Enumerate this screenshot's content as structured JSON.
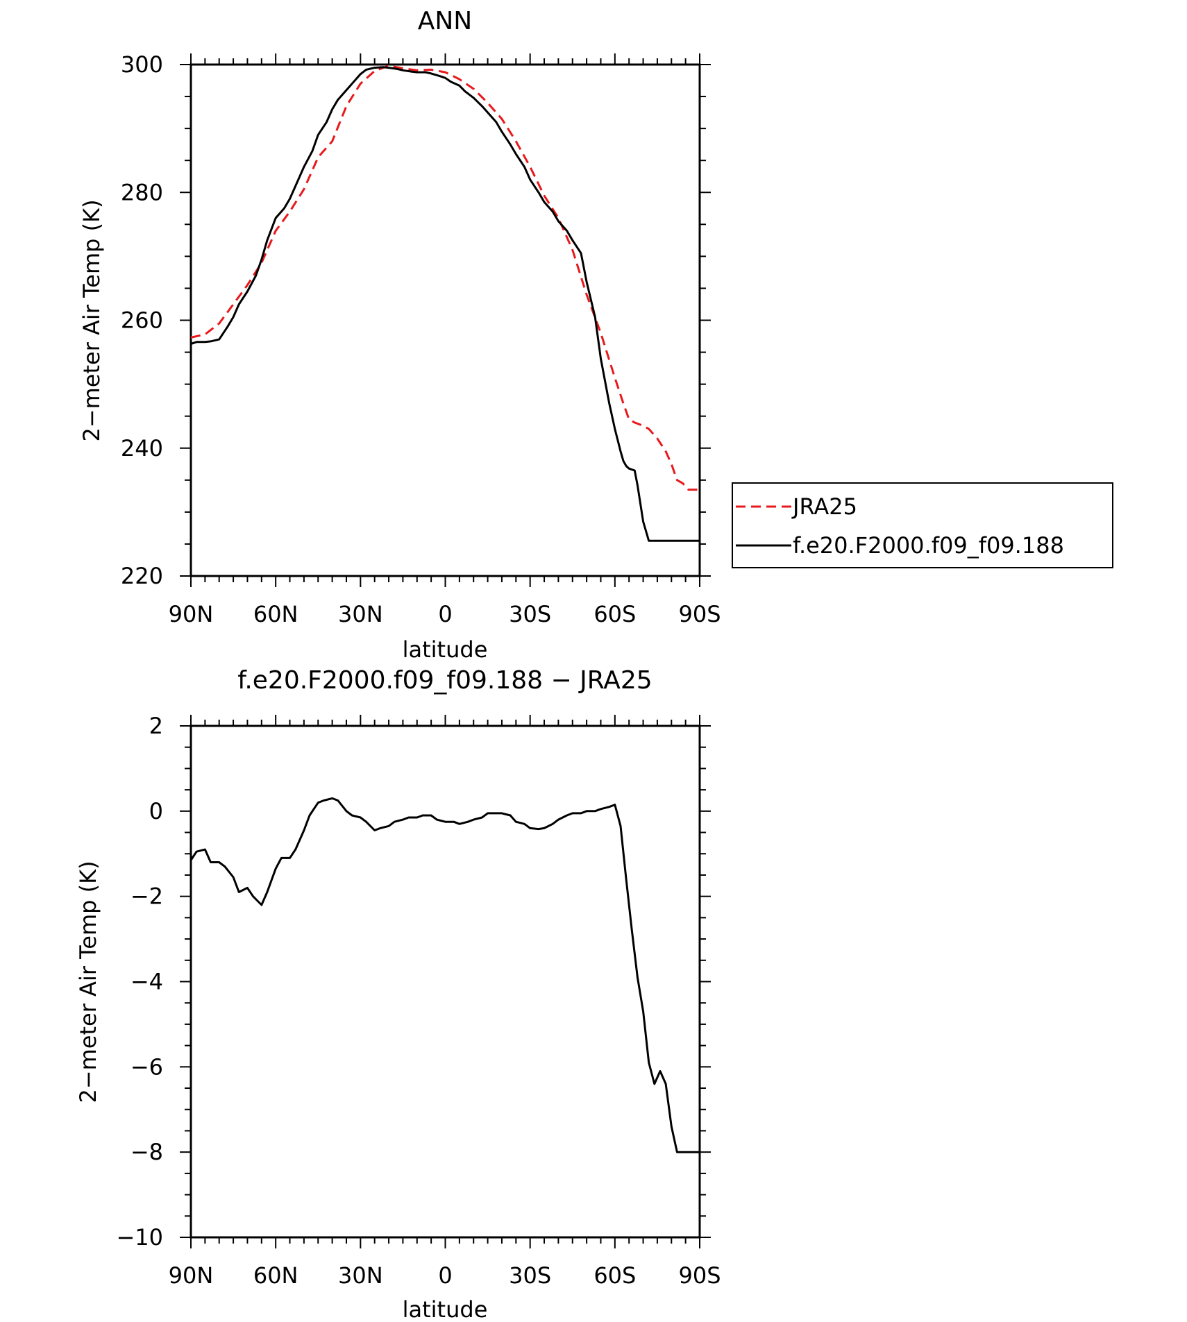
{
  "chart_data": [
    {
      "type": "line",
      "title": "ANN",
      "xlabel": "latitude",
      "ylabel": "2−meter Air Temp (K)",
      "xlim": [
        90,
        -90
      ],
      "ylim": [
        220,
        300
      ],
      "xticks": [
        90,
        60,
        30,
        0,
        -30,
        -60,
        -90
      ],
      "xticklabels": [
        "90N",
        "60N",
        "30N",
        "0",
        "30S",
        "60S",
        "90S"
      ],
      "yticks": [
        220,
        240,
        260,
        280,
        300
      ],
      "yticklabels": [
        "220",
        "240",
        "260",
        "280",
        "300"
      ],
      "grid": false,
      "legend": "right",
      "series": [
        {
          "name": "JRA25",
          "color": "#e8191c",
          "dash": "dashed",
          "x": [
            90,
            85,
            80,
            75,
            70,
            65,
            60,
            55,
            50,
            45,
            40,
            35,
            30,
            25,
            20,
            15,
            10,
            5,
            0,
            -5,
            -10,
            -15,
            -20,
            -25,
            -30,
            -35,
            -40,
            -45,
            -50,
            -55,
            -60,
            -63,
            -65,
            -67,
            -70,
            -72,
            -75,
            -78,
            -80,
            -82,
            -84,
            -86,
            -88,
            -90
          ],
          "y": [
            257.3,
            257.8,
            259.5,
            262.5,
            265.5,
            269.0,
            274.0,
            277.0,
            280.5,
            285.5,
            288.0,
            293.5,
            297.0,
            299.0,
            299.8,
            299.4,
            299.1,
            299.2,
            298.8,
            297.7,
            296.2,
            294.0,
            291.5,
            288.0,
            284.0,
            279.5,
            276.0,
            271.0,
            264.0,
            258.0,
            251.0,
            247.0,
            244.5,
            244.0,
            243.5,
            243.0,
            241.5,
            239.5,
            237.5,
            235.0,
            234.5,
            233.5,
            233.5,
            233.5
          ]
        },
        {
          "name": "f.e20.F2000.f09_f09.188",
          "color": "#000000",
          "dash": "solid",
          "x": [
            90,
            88,
            85,
            83,
            80,
            77,
            75,
            73,
            70,
            67,
            65,
            63,
            60,
            57,
            55,
            53,
            50,
            47,
            45,
            42,
            40,
            38,
            35,
            32,
            30,
            28,
            25,
            22,
            20,
            17,
            15,
            12,
            10,
            7,
            5,
            2,
            0,
            -2,
            -5,
            -7,
            -10,
            -13,
            -15,
            -18,
            -20,
            -23,
            -25,
            -28,
            -30,
            -33,
            -35,
            -38,
            -40,
            -43,
            -45,
            -48,
            -50,
            -53,
            -55,
            -58,
            -60,
            -62,
            -63,
            -64,
            -65,
            -67,
            -68,
            -70,
            -72,
            -74,
            -75,
            -77,
            -79,
            -81,
            -82,
            -84,
            -86,
            -88,
            -90
          ],
          "y": [
            256.3,
            256.6,
            256.6,
            256.7,
            257.0,
            259.0,
            260.5,
            262.5,
            264.5,
            267.0,
            269.5,
            272.5,
            276.0,
            277.5,
            279.0,
            281.0,
            284.0,
            286.5,
            289.0,
            291.0,
            293.0,
            294.5,
            296.0,
            297.5,
            298.5,
            299.2,
            299.5,
            299.6,
            299.5,
            299.3,
            299.1,
            298.9,
            298.8,
            298.8,
            298.6,
            298.2,
            297.9,
            297.3,
            296.7,
            295.8,
            294.8,
            293.5,
            292.5,
            291.0,
            289.5,
            287.5,
            286.0,
            284.0,
            282.0,
            280.0,
            278.5,
            277.0,
            275.5,
            274.0,
            272.5,
            270.5,
            266.0,
            260.5,
            254.0,
            247.0,
            243.0,
            239.5,
            238.0,
            237.2,
            236.8,
            236.5,
            234.2,
            228.5,
            225.5,
            225.5,
            225.5,
            225.5,
            225.5,
            225.5,
            225.5,
            225.5,
            225.5,
            225.5,
            225.5
          ]
        }
      ]
    },
    {
      "type": "line",
      "title": "f.e20.F2000.f09_f09.188 − JRA25",
      "xlabel": "latitude",
      "ylabel": "2−meter Air Temp (K)",
      "xlim": [
        90,
        -90
      ],
      "ylim": [
        -10,
        2
      ],
      "xticks": [
        90,
        60,
        30,
        0,
        -30,
        -60,
        -90
      ],
      "xticklabels": [
        "90N",
        "60N",
        "30N",
        "0",
        "30S",
        "60S",
        "90S"
      ],
      "yticks": [
        -10,
        -8,
        -6,
        -4,
        -2,
        0,
        2
      ],
      "yticklabels": [
        "−10",
        "−8",
        "−6",
        "−4",
        "−2",
        "0",
        "2"
      ],
      "grid": false,
      "series": [
        {
          "color": "#000000",
          "dash": "solid",
          "x": [
            90,
            88,
            85,
            83,
            80,
            78,
            75,
            73,
            70,
            68,
            65,
            63,
            60,
            58,
            55,
            53,
            50,
            48,
            45,
            43,
            40,
            38,
            35,
            33,
            30,
            28,
            25,
            23,
            20,
            18,
            15,
            13,
            10,
            8,
            5,
            3,
            0,
            -3,
            -5,
            -8,
            -10,
            -13,
            -15,
            -18,
            -20,
            -23,
            -25,
            -28,
            -30,
            -33,
            -35,
            -38,
            -40,
            -43,
            -45,
            -48,
            -50,
            -53,
            -55,
            -58,
            -60,
            -62,
            -64,
            -66,
            -68,
            -70,
            -72,
            -74,
            -76,
            -78,
            -80,
            -82,
            -84,
            -86,
            -88,
            -90
          ],
          "y": [
            -1.15,
            -0.95,
            -0.9,
            -1.2,
            -1.2,
            -1.3,
            -1.55,
            -1.9,
            -1.8,
            -2.0,
            -2.2,
            -1.9,
            -1.35,
            -1.1,
            -1.1,
            -0.9,
            -0.45,
            -0.1,
            0.2,
            0.25,
            0.3,
            0.25,
            0.0,
            -0.1,
            -0.15,
            -0.25,
            -0.45,
            -0.4,
            -0.35,
            -0.25,
            -0.2,
            -0.15,
            -0.15,
            -0.1,
            -0.1,
            -0.2,
            -0.25,
            -0.25,
            -0.3,
            -0.25,
            -0.2,
            -0.15,
            -0.05,
            -0.05,
            -0.05,
            -0.1,
            -0.25,
            -0.3,
            -0.4,
            -0.42,
            -0.4,
            -0.3,
            -0.2,
            -0.1,
            -0.05,
            -0.05,
            0.0,
            0.0,
            0.05,
            0.1,
            0.15,
            -0.35,
            -1.6,
            -2.8,
            -3.9,
            -4.7,
            -5.9,
            -6.4,
            -6.1,
            -6.4,
            -7.4,
            -8.0,
            -8.0,
            -8.0,
            -8.0,
            -8.0
          ]
        }
      ]
    }
  ]
}
